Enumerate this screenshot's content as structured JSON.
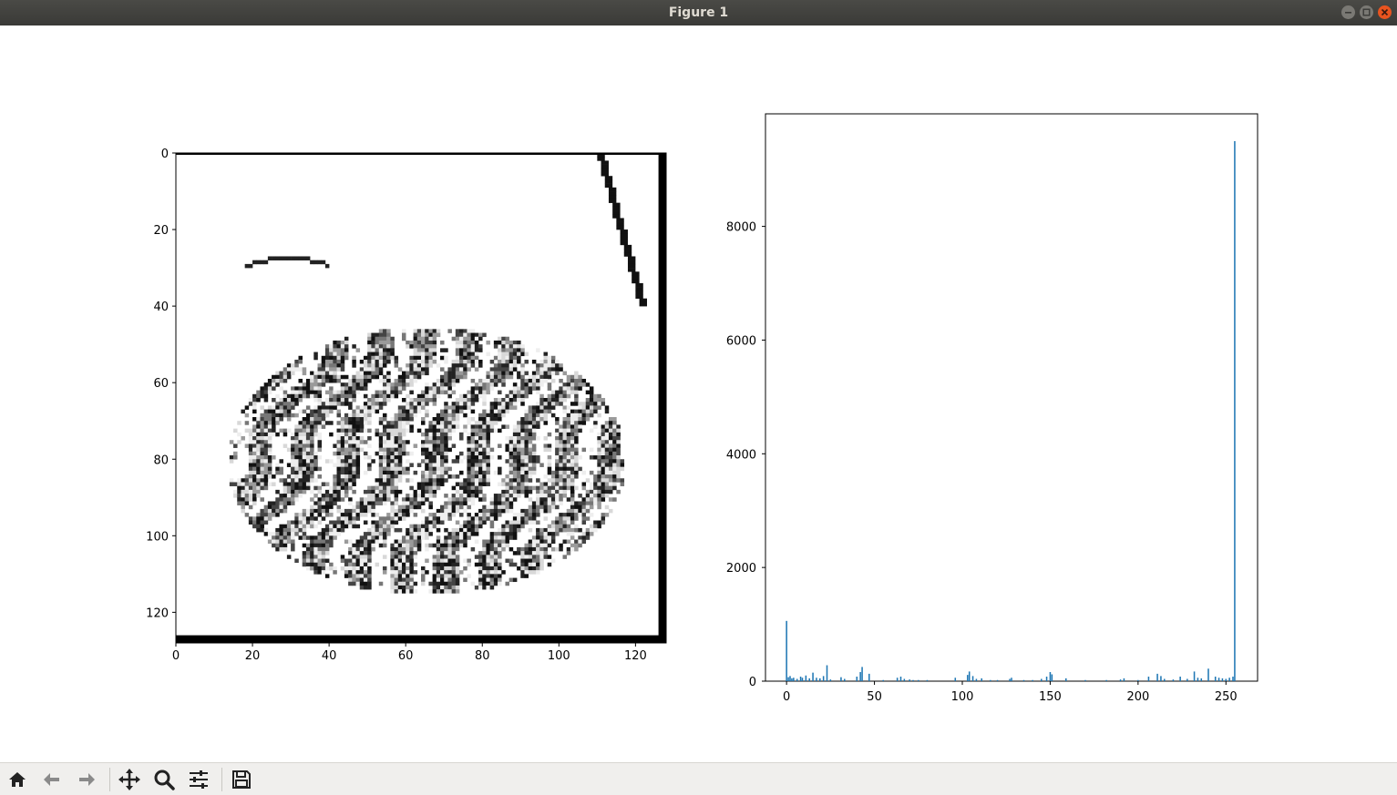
{
  "window": {
    "title": "Figure 1"
  },
  "toolbar": {
    "buttons": [
      {
        "name": "home",
        "icon": "home-icon"
      },
      {
        "name": "back",
        "icon": "arrow-left-icon"
      },
      {
        "name": "forward",
        "icon": "arrow-right-icon"
      },
      {
        "name": "pan",
        "icon": "move-icon"
      },
      {
        "name": "zoom",
        "icon": "magnifier-icon"
      },
      {
        "name": "configure-subplots",
        "icon": "sliders-icon"
      },
      {
        "name": "save",
        "icon": "floppy-disk-icon"
      }
    ]
  },
  "colors": {
    "bar": "#1f77b4",
    "titlebar": "#3a3a37",
    "close": "#e9541f"
  },
  "chart_data": [
    {
      "type": "heatmap",
      "description_ref": "grayscale image shown with imshow",
      "xlim": [
        0,
        127
      ],
      "ylim": [
        127,
        0
      ],
      "x_ticks": [
        0,
        20,
        40,
        60,
        80,
        100,
        120
      ],
      "y_ticks": [
        0,
        20,
        40,
        60,
        80,
        100,
        120
      ],
      "colormap": "gray"
    },
    {
      "type": "bar",
      "xlim": [
        -12,
        268
      ],
      "ylim": [
        0,
        9980
      ],
      "x_ticks": [
        0,
        50,
        100,
        150,
        200,
        250
      ],
      "y_ticks": [
        0,
        2000,
        4000,
        6000,
        8000
      ],
      "bars": [
        {
          "x": 0,
          "y": 1060
        },
        {
          "x": 1,
          "y": 70
        },
        {
          "x": 2,
          "y": 90
        },
        {
          "x": 3,
          "y": 50
        },
        {
          "x": 4,
          "y": 60
        },
        {
          "x": 6,
          "y": 40
        },
        {
          "x": 8,
          "y": 80
        },
        {
          "x": 9,
          "y": 60
        },
        {
          "x": 11,
          "y": 100
        },
        {
          "x": 13,
          "y": 50
        },
        {
          "x": 15,
          "y": 150
        },
        {
          "x": 17,
          "y": 60
        },
        {
          "x": 19,
          "y": 50
        },
        {
          "x": 21,
          "y": 90
        },
        {
          "x": 23,
          "y": 280
        },
        {
          "x": 25,
          "y": 30
        },
        {
          "x": 31,
          "y": 70
        },
        {
          "x": 33,
          "y": 40
        },
        {
          "x": 40,
          "y": 80
        },
        {
          "x": 42,
          "y": 160
        },
        {
          "x": 43,
          "y": 250
        },
        {
          "x": 47,
          "y": 130
        },
        {
          "x": 55,
          "y": 20
        },
        {
          "x": 63,
          "y": 60
        },
        {
          "x": 65,
          "y": 80
        },
        {
          "x": 67,
          "y": 40
        },
        {
          "x": 70,
          "y": 30
        },
        {
          "x": 72,
          "y": 20
        },
        {
          "x": 75,
          "y": 20
        },
        {
          "x": 80,
          "y": 20
        },
        {
          "x": 96,
          "y": 60
        },
        {
          "x": 103,
          "y": 110
        },
        {
          "x": 104,
          "y": 170
        },
        {
          "x": 106,
          "y": 90
        },
        {
          "x": 108,
          "y": 40
        },
        {
          "x": 111,
          "y": 50
        },
        {
          "x": 116,
          "y": 20
        },
        {
          "x": 120,
          "y": 20
        },
        {
          "x": 127,
          "y": 40
        },
        {
          "x": 128,
          "y": 60
        },
        {
          "x": 135,
          "y": 20
        },
        {
          "x": 140,
          "y": 20
        },
        {
          "x": 145,
          "y": 40
        },
        {
          "x": 148,
          "y": 80
        },
        {
          "x": 150,
          "y": 160
        },
        {
          "x": 151,
          "y": 120
        },
        {
          "x": 159,
          "y": 50
        },
        {
          "x": 170,
          "y": 20
        },
        {
          "x": 182,
          "y": 20
        },
        {
          "x": 190,
          "y": 30
        },
        {
          "x": 192,
          "y": 50
        },
        {
          "x": 200,
          "y": 20
        },
        {
          "x": 206,
          "y": 80
        },
        {
          "x": 211,
          "y": 130
        },
        {
          "x": 213,
          "y": 90
        },
        {
          "x": 215,
          "y": 40
        },
        {
          "x": 220,
          "y": 30
        },
        {
          "x": 224,
          "y": 80
        },
        {
          "x": 228,
          "y": 40
        },
        {
          "x": 232,
          "y": 170
        },
        {
          "x": 234,
          "y": 60
        },
        {
          "x": 236,
          "y": 50
        },
        {
          "x": 240,
          "y": 220
        },
        {
          "x": 244,
          "y": 80
        },
        {
          "x": 246,
          "y": 60
        },
        {
          "x": 248,
          "y": 50
        },
        {
          "x": 250,
          "y": 40
        },
        {
          "x": 252,
          "y": 60
        },
        {
          "x": 254,
          "y": 80
        },
        {
          "x": 255,
          "y": 9500
        }
      ]
    }
  ]
}
